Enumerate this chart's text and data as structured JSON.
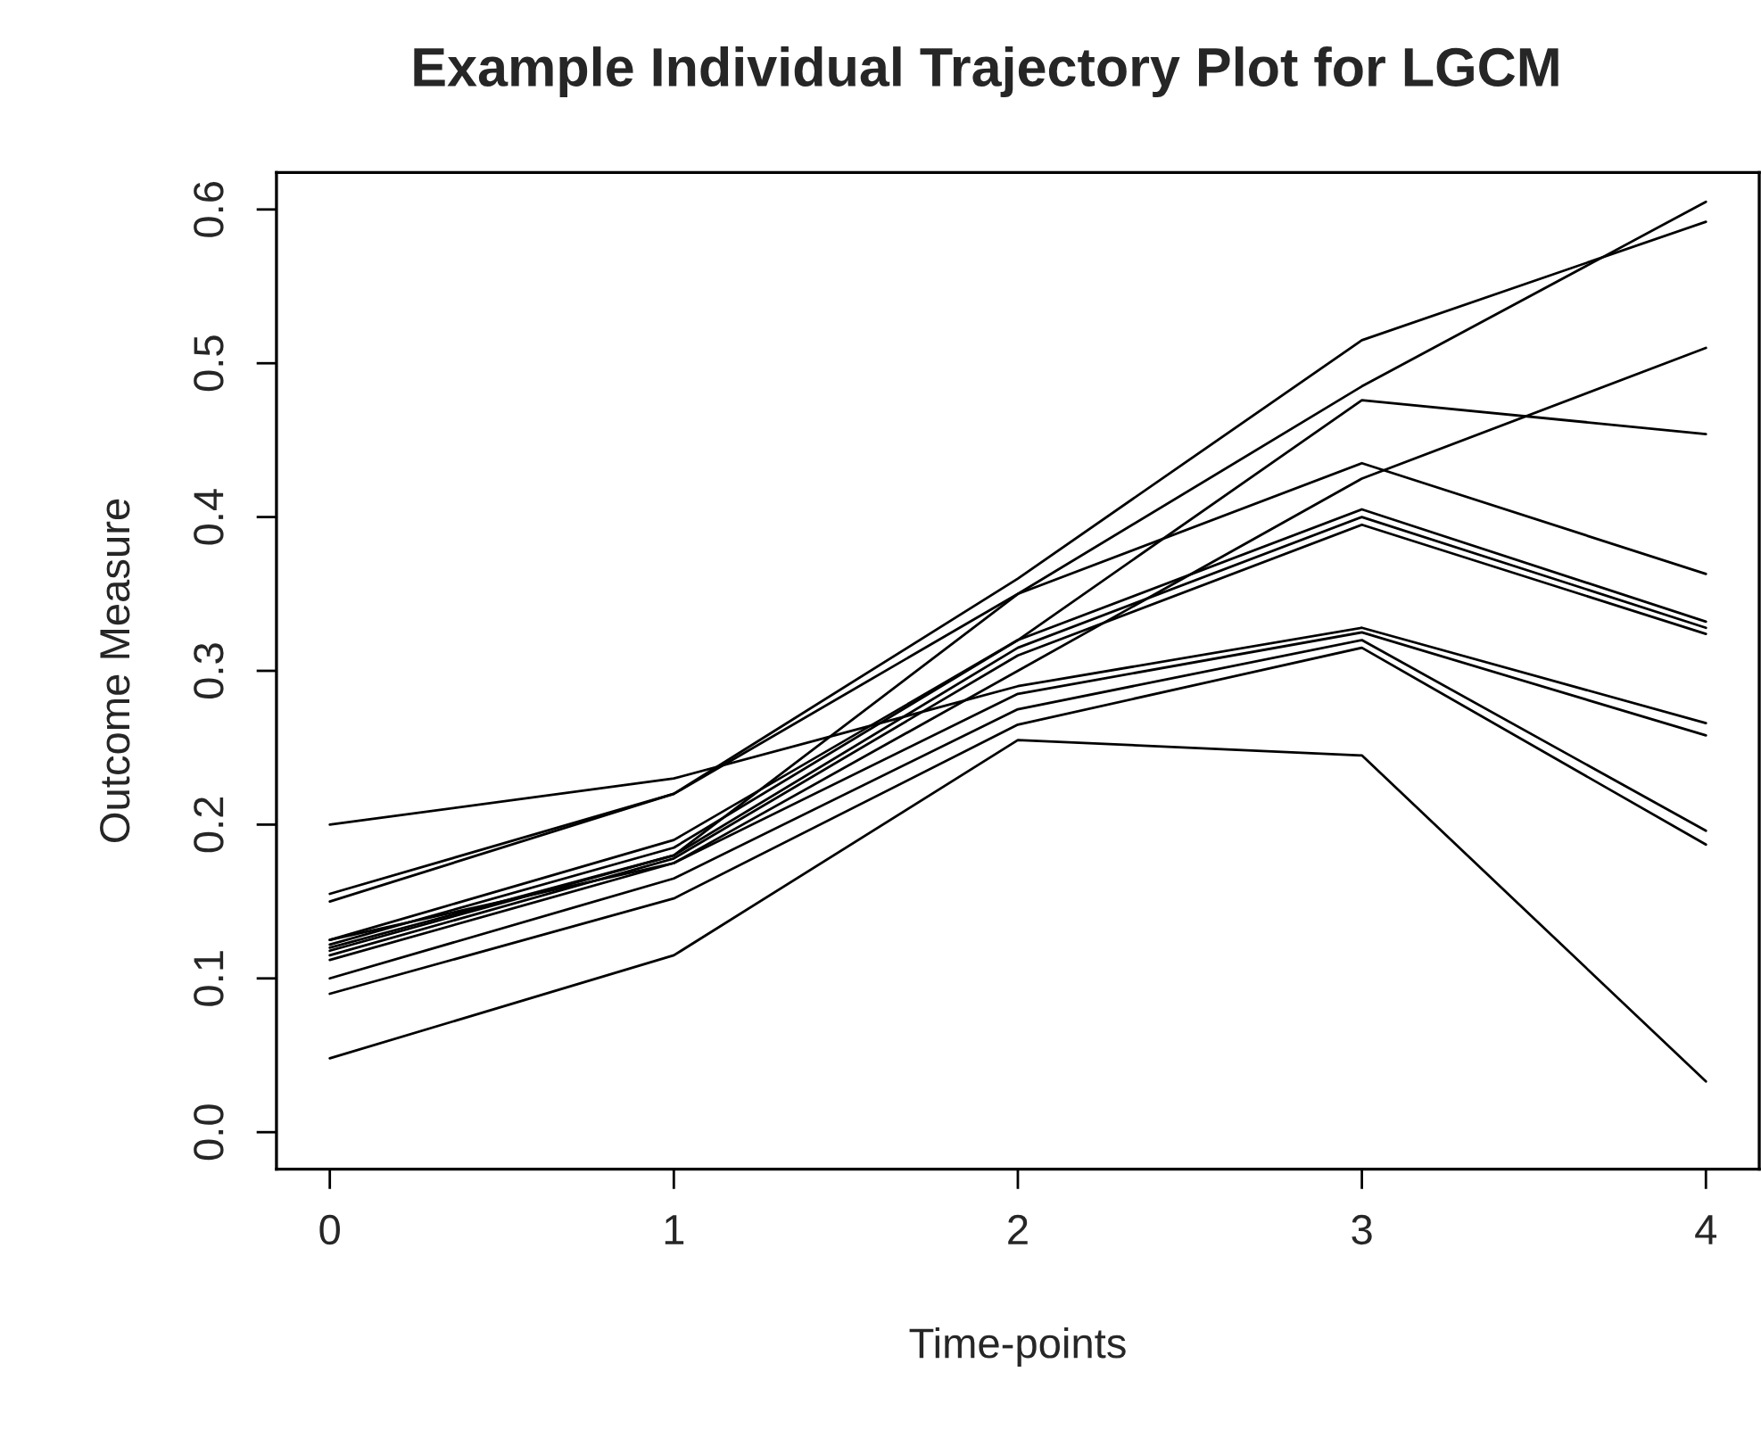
{
  "chart_data": {
    "type": "line",
    "title": "Example Individual Trajectory Plot for LGCM",
    "xlabel": "Time-points",
    "ylabel": "Outcome Measure",
    "x": [
      0,
      1,
      2,
      3,
      4
    ],
    "xlim": [
      -0.155,
      4.155
    ],
    "xticks": [
      0,
      1,
      2,
      3,
      4
    ],
    "ylim": [
      -0.024,
      0.624
    ],
    "yticks": [
      {
        "value": 0,
        "label": "0.0"
      },
      0.1,
      0.2,
      0.3,
      0.4,
      0.5,
      0.6
    ],
    "marker": "none",
    "line_style": "solid",
    "series": [
      {
        "color": "#000000",
        "values": [
          0.155,
          0.22,
          0.36,
          0.515,
          0.592
        ]
      },
      {
        "color": "#000000",
        "values": [
          0.15,
          0.22,
          0.35,
          0.485,
          0.605
        ]
      },
      {
        "color": "#000000",
        "values": [
          0.125,
          0.19,
          0.32,
          0.476,
          0.454
        ]
      },
      {
        "color": "#000000",
        "values": [
          0.12,
          0.18,
          0.35,
          0.435,
          0.363
        ]
      },
      {
        "color": "#000000",
        "values": [
          0.112,
          0.175,
          0.3,
          0.425,
          0.51
        ]
      },
      {
        "color": "#000000",
        "values": [
          0.122,
          0.185,
          0.32,
          0.405,
          0.332
        ]
      },
      {
        "color": "#000000",
        "values": [
          0.118,
          0.18,
          0.315,
          0.4,
          0.328
        ]
      },
      {
        "color": "#000000",
        "values": [
          0.115,
          0.178,
          0.31,
          0.395,
          0.324
        ]
      },
      {
        "color": "#000000",
        "values": [
          0.2,
          0.23,
          0.29,
          0.328,
          0.266
        ]
      },
      {
        "color": "#000000",
        "values": [
          0.125,
          0.175,
          0.285,
          0.325,
          0.258
        ]
      },
      {
        "color": "#000000",
        "values": [
          0.1,
          0.165,
          0.275,
          0.32,
          0.196
        ]
      },
      {
        "color": "#000000",
        "values": [
          0.09,
          0.152,
          0.265,
          0.315,
          0.187
        ]
      },
      {
        "color": "#000000",
        "values": [
          0.048,
          0.115,
          0.255,
          0.245,
          0.033
        ]
      }
    ]
  }
}
